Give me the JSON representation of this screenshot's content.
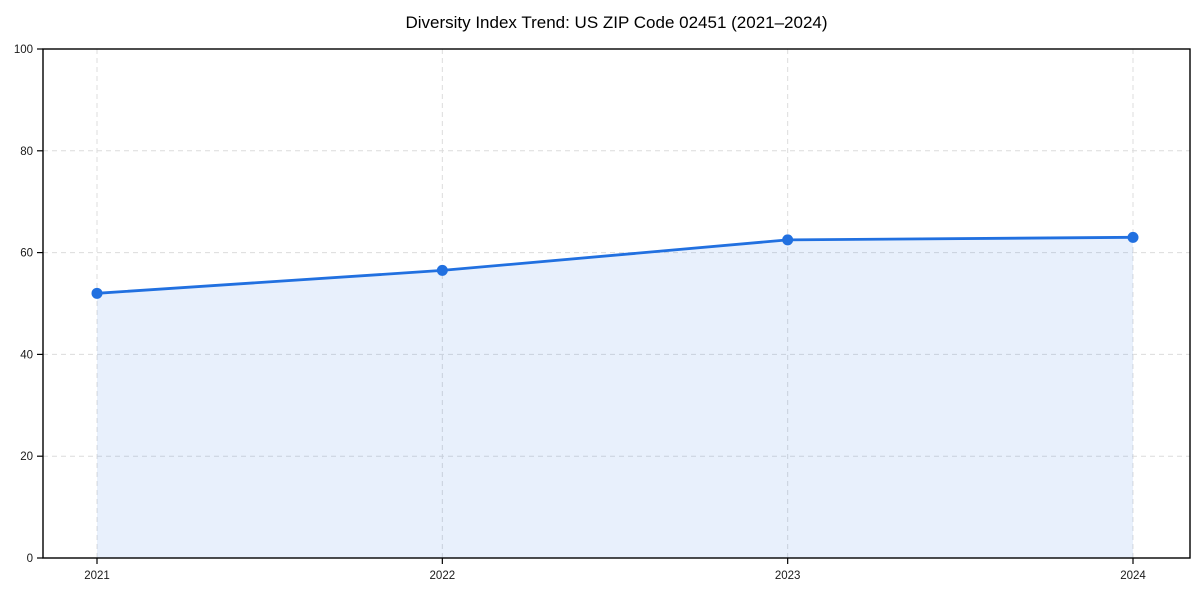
{
  "header": {
    "title": "Diversity Index Trend: US ZIP Code 02451 (2021–2024)"
  },
  "chart_data": {
    "type": "area",
    "categories": [
      "2021",
      "2022",
      "2023",
      "2024"
    ],
    "series": [
      {
        "name": "Diversity Index",
        "values": [
          52,
          56.5,
          62.5,
          63
        ]
      }
    ],
    "title": "Diversity Index Trend: US ZIP Code 02451 (2021–2024)",
    "xlabel": "",
    "ylabel": "",
    "ylim": [
      0,
      100
    ],
    "y_ticks": [
      0,
      20,
      40,
      60,
      80,
      100
    ],
    "grid": true,
    "grid_style": "dashed",
    "legend_position": "none",
    "markers": true,
    "colors": {
      "line": "#2170e0",
      "marker": "#2170e0",
      "fill_rgba": "rgba(33,112,224,0.10)",
      "gridline": "#dcdcdc",
      "axis_frame": "#000000",
      "tick_text": "#1a1a1a",
      "background": "#ffffff"
    }
  }
}
